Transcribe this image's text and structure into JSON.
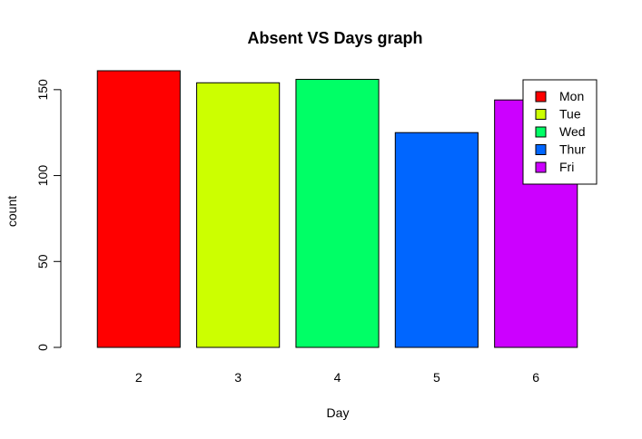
{
  "chart_data": {
    "type": "bar",
    "title": "Absent VS Days graph",
    "xlabel": "Day",
    "ylabel": "count",
    "categories": [
      "2",
      "3",
      "4",
      "5",
      "6"
    ],
    "values": [
      161,
      154,
      156,
      125,
      144
    ],
    "colors": [
      "#ff0000",
      "#ccff00",
      "#00ff66",
      "#0066ff",
      "#cc00ff"
    ],
    "ylim": [
      0,
      161
    ],
    "y_ticks": [
      "0",
      "50",
      "100",
      "150"
    ],
    "legend": {
      "position": "top-right",
      "labels": [
        "Mon",
        "Tue",
        "Wed",
        "Thur",
        "Fri"
      ]
    },
    "grid": false
  }
}
